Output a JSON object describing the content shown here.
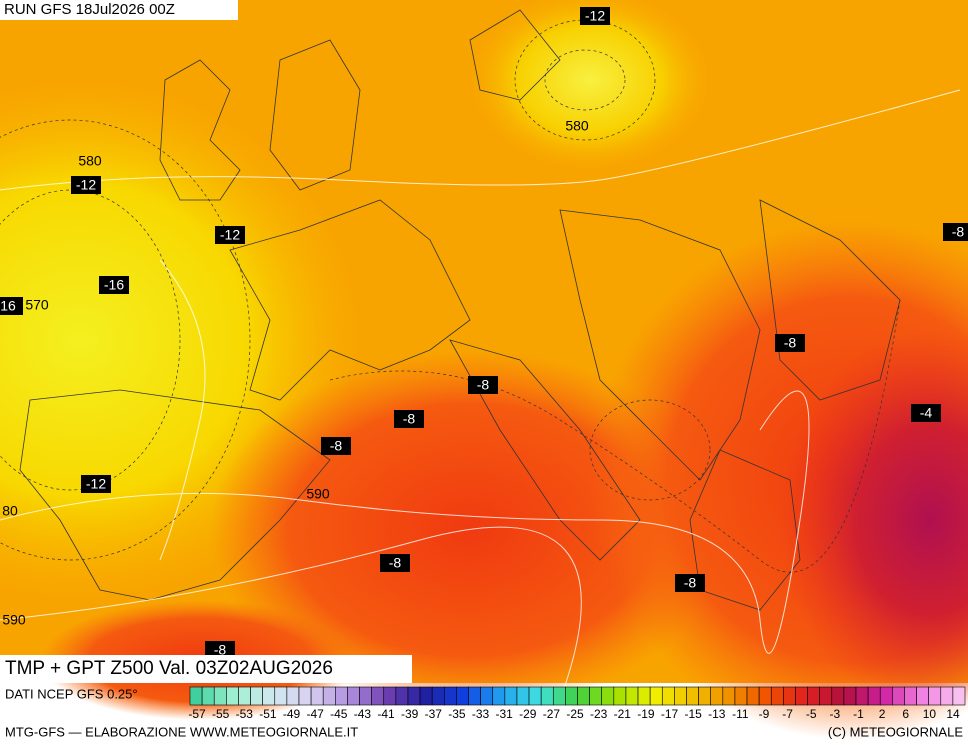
{
  "header": {
    "run": "RUN GFS 18Jul2026 00Z"
  },
  "title": "TMP + GPT Z500 Val. 03Z02AUG2026",
  "source": "DATI NCEP GFS 0.25°",
  "footer": {
    "credit": "MTG-GFS — ELABORAZIONE WWW.METEOGIORNALE.IT",
    "copyright": "(C) METEOGIORNALE"
  },
  "temperature_labels": [
    "-12",
    "-12",
    "-12",
    "-16",
    "16",
    "-8",
    "-8",
    "-8",
    "-8",
    "-8",
    "-4",
    "-12",
    "-8",
    "-8",
    "-8"
  ],
  "height_labels": [
    "580",
    "580",
    "570",
    "590",
    "80",
    "590"
  ],
  "colorbar": {
    "ticks": [
      -57,
      -55,
      -53,
      -51,
      -49,
      -47,
      -45,
      -43,
      -41,
      -39,
      -37,
      -35,
      -33,
      -31,
      -29,
      -27,
      -25,
      -23,
      -21,
      -19,
      -17,
      -15,
      -13,
      -11,
      -9,
      -7,
      -5,
      -3,
      -1,
      2,
      6,
      10,
      14
    ],
    "colors": [
      "#40d0a0",
      "#a0f0d0",
      "#d0e8f0",
      "#d8d0f0",
      "#b090e0",
      "#7040b0",
      "#2020a0",
      "#1040e0",
      "#20a0f0",
      "#40e0e0",
      "#40d040",
      "#a0e000",
      "#f0f000",
      "#f0c000",
      "#f09000",
      "#f05000",
      "#e02020",
      "#b01040",
      "#d020a0",
      "#f080e0",
      "#f8c0f0"
    ]
  }
}
